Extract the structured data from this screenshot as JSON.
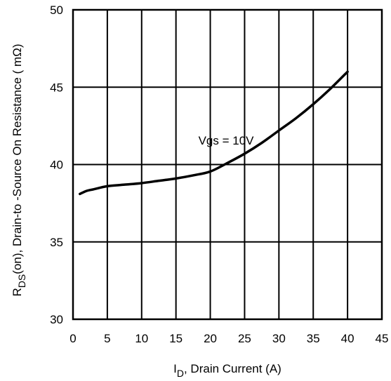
{
  "chart_data": {
    "type": "line",
    "title": "",
    "xlabel": {
      "main": "I",
      "sub": "D",
      "rest": ", Drain Current (A)"
    },
    "ylabel": {
      "main": "R",
      "sub": "DS",
      "rest": "(on),  Drain-to -Source On Resistance ( mΩ)"
    },
    "xlim": [
      0,
      45
    ],
    "ylim": [
      30,
      50
    ],
    "x_ticks": [
      0,
      5,
      10,
      15,
      20,
      25,
      30,
      35,
      40,
      45
    ],
    "y_ticks": [
      30,
      35,
      40,
      45,
      50
    ],
    "grid": true,
    "series": [
      {
        "name": "Vgs = 10V",
        "x": [
          1,
          2,
          3,
          5,
          7.5,
          10,
          12.5,
          15,
          17.5,
          20,
          22.5,
          25,
          27.5,
          30,
          32.5,
          35,
          37.5,
          40
        ],
        "y": [
          38.1,
          38.3,
          38.4,
          38.6,
          38.7,
          38.8,
          38.95,
          39.1,
          39.3,
          39.55,
          40.1,
          40.7,
          41.4,
          42.2,
          43.0,
          43.9,
          44.9,
          46.0
        ]
      }
    ],
    "annotations": [
      {
        "text": "Vgs = 10V",
        "x": 22.3,
        "y": 41.3
      }
    ]
  }
}
